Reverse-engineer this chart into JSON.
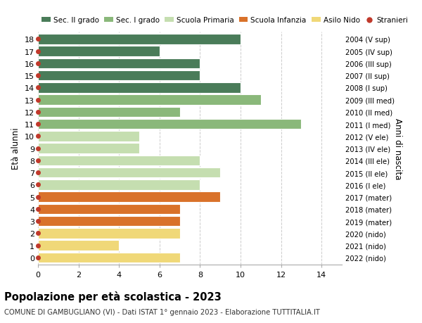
{
  "ages": [
    18,
    17,
    16,
    15,
    14,
    13,
    12,
    11,
    10,
    9,
    8,
    7,
    6,
    5,
    4,
    3,
    2,
    1,
    0
  ],
  "values": [
    10,
    6,
    8,
    8,
    10,
    11,
    7,
    13,
    5,
    5,
    8,
    9,
    8,
    9,
    7,
    7,
    7,
    4,
    7
  ],
  "right_labels": [
    "2004 (V sup)",
    "2005 (IV sup)",
    "2006 (III sup)",
    "2007 (II sup)",
    "2008 (I sup)",
    "2009 (III med)",
    "2010 (II med)",
    "2011 (I med)",
    "2012 (V ele)",
    "2013 (IV ele)",
    "2014 (III ele)",
    "2015 (II ele)",
    "2016 (I ele)",
    "2017 (mater)",
    "2018 (mater)",
    "2019 (mater)",
    "2020 (nido)",
    "2021 (nido)",
    "2022 (nido)"
  ],
  "bar_colors": [
    "#4a7c59",
    "#4a7c59",
    "#4a7c59",
    "#4a7c59",
    "#4a7c59",
    "#8ab87a",
    "#8ab87a",
    "#8ab87a",
    "#c5deb0",
    "#c5deb0",
    "#c5deb0",
    "#c5deb0",
    "#c5deb0",
    "#d9722a",
    "#d9722a",
    "#d9722a",
    "#f0d878",
    "#f0d878",
    "#f0d878"
  ],
  "legend_labels": [
    "Sec. II grado",
    "Sec. I grado",
    "Scuola Primaria",
    "Scuola Infanzia",
    "Asilo Nido",
    "Stranieri"
  ],
  "legend_colors": [
    "#4a7c59",
    "#8ab87a",
    "#c5deb0",
    "#d9722a",
    "#f0d878",
    "#c0392b"
  ],
  "dot_color": "#c0392b",
  "title": "Popolazione per età scolastica - 2023",
  "subtitle": "COMUNE DI GAMBUGLIANO (VI) - Dati ISTAT 1° gennaio 2023 - Elaborazione TUTTITALIA.IT",
  "ylabel": "Età alunni",
  "right_ylabel": "Anni di nascita",
  "xlim": [
    0,
    15
  ],
  "xticks": [
    0,
    2,
    4,
    6,
    8,
    10,
    12,
    14
  ],
  "background_color": "#ffffff",
  "grid_color": "#cccccc",
  "bar_height": 0.85,
  "fig_width": 6.0,
  "fig_height": 4.6,
  "dpi": 100
}
